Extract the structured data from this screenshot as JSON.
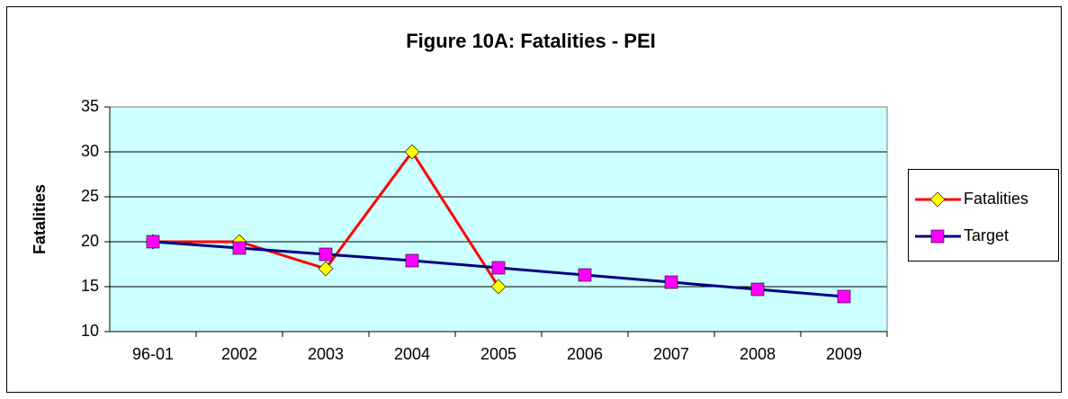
{
  "chart_data": {
    "type": "line",
    "title": "Figure 10A: Fatalities - PEI",
    "y_label": "Fatalities",
    "categories": [
      "96-01",
      "2002",
      "2003",
      "2004",
      "2005",
      "2006",
      "2007",
      "2008",
      "2009"
    ],
    "series": [
      {
        "name": "Fatalities",
        "color": "#ff0000",
        "marker": "diamond",
        "marker_color": "#ffff00",
        "values": [
          20,
          20,
          17,
          30,
          15,
          null,
          null,
          null,
          null
        ]
      },
      {
        "name": "Target",
        "color": "#000080",
        "marker": "square",
        "marker_color": "#ff00ff",
        "values": [
          20,
          19.3,
          18.6,
          17.9,
          17.1,
          16.3,
          15.5,
          14.7,
          13.9
        ]
      }
    ],
    "ylim": [
      10,
      35
    ],
    "yticks": [
      10,
      15,
      20,
      25,
      30,
      35
    ],
    "grid": true,
    "legend": "right",
    "plot_background": "#ccffff"
  }
}
